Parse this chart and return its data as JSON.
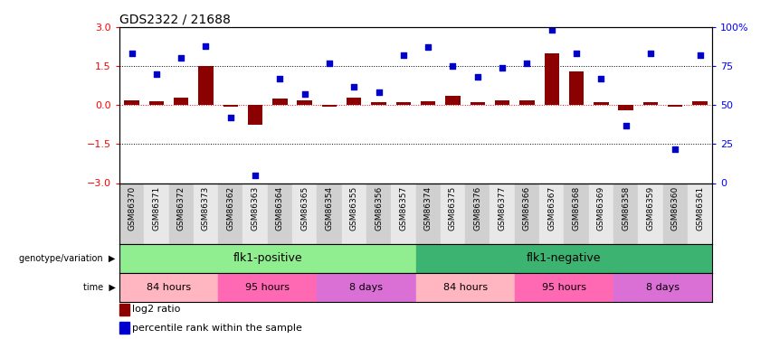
{
  "title": "GDS2322 / 21688",
  "samples": [
    "GSM86370",
    "GSM86371",
    "GSM86372",
    "GSM86373",
    "GSM86362",
    "GSM86363",
    "GSM86364",
    "GSM86365",
    "GSM86354",
    "GSM86355",
    "GSM86356",
    "GSM86357",
    "GSM86374",
    "GSM86375",
    "GSM86376",
    "GSM86377",
    "GSM86366",
    "GSM86367",
    "GSM86368",
    "GSM86369",
    "GSM86358",
    "GSM86359",
    "GSM86360",
    "GSM86361"
  ],
  "log2_ratio": [
    0.2,
    0.15,
    0.3,
    1.5,
    -0.05,
    -0.75,
    0.25,
    0.2,
    -0.05,
    0.3,
    0.12,
    0.12,
    0.15,
    0.35,
    0.12,
    0.2,
    0.2,
    2.0,
    1.3,
    0.1,
    -0.2,
    0.12,
    -0.05,
    0.15
  ],
  "percentile": [
    83,
    70,
    80,
    88,
    42,
    5,
    67,
    57,
    77,
    62,
    58,
    82,
    87,
    75,
    68,
    74,
    77,
    98,
    83,
    67,
    37,
    83,
    22,
    82
  ],
  "genotype_groups": [
    {
      "label": "flk1-positive",
      "start": 0,
      "end": 12,
      "color": "#90EE90"
    },
    {
      "label": "flk1-negative",
      "start": 12,
      "end": 24,
      "color": "#3CB371"
    }
  ],
  "time_groups": [
    {
      "label": "84 hours",
      "start": 0,
      "end": 4,
      "color": "#FFB6C1"
    },
    {
      "label": "95 hours",
      "start": 4,
      "end": 8,
      "color": "#FF69B4"
    },
    {
      "label": "8 days",
      "start": 8,
      "end": 12,
      "color": "#DA70D6"
    },
    {
      "label": "84 hours",
      "start": 12,
      "end": 16,
      "color": "#FFB6C1"
    },
    {
      "label": "95 hours",
      "start": 16,
      "end": 20,
      "color": "#FF69B4"
    },
    {
      "label": "8 days",
      "start": 20,
      "end": 24,
      "color": "#DA70D6"
    }
  ],
  "bar_color": "#8B0000",
  "scatter_color": "#0000CD",
  "ylim_left": [
    -3,
    3
  ],
  "ylim_right": [
    0,
    100
  ],
  "yticks_left": [
    -3,
    -1.5,
    0,
    1.5,
    3
  ],
  "yticks_right": [
    0,
    25,
    50,
    75,
    100
  ],
  "bg_colors": [
    "#d0d0d0",
    "#e8e8e8"
  ]
}
